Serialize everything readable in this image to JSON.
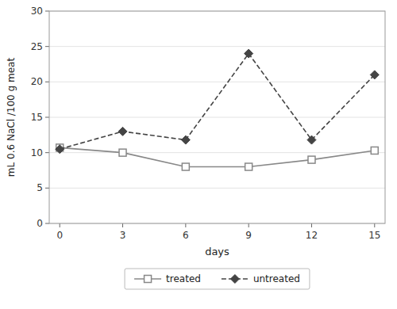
{
  "chart_data": {
    "type": "line",
    "x": [
      0,
      3,
      6,
      9,
      12,
      15
    ],
    "xlim": [
      -0.5,
      15.5
    ],
    "xticks": [
      0,
      3,
      6,
      9,
      12,
      15
    ],
    "ylim": [
      0,
      30
    ],
    "yticks": [
      0,
      5,
      10,
      15,
      20,
      25,
      30
    ],
    "xlabel": "days",
    "ylabel": "mL 0.6 NaCl /100 g meat",
    "grid": true,
    "legend": "bottom",
    "series": [
      {
        "name": "treated",
        "color": "#888888",
        "marker": "square",
        "line_style": "solid",
        "values": [
          10.7,
          10.0,
          8.0,
          8.0,
          9.0,
          10.3
        ]
      },
      {
        "name": "untreated",
        "color": "#444444",
        "marker": "diamond",
        "line_style": "dashed",
        "values": [
          10.5,
          13.0,
          11.8,
          24.0,
          11.8,
          21.0
        ]
      }
    ]
  }
}
